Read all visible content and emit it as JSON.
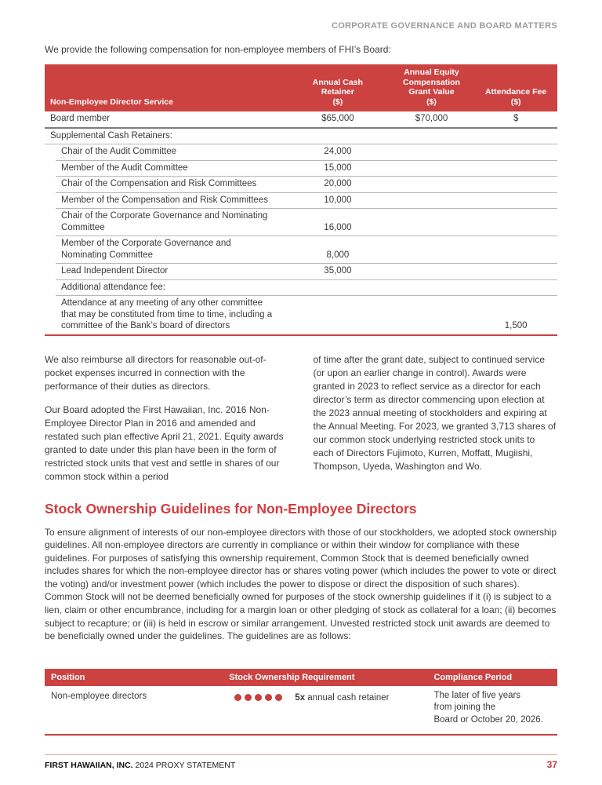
{
  "page_header": "CORPORATE GOVERNANCE AND BOARD MATTERS",
  "intro": "We provide the following compensation for non-employee members of FHI’s Board:",
  "comp_table": {
    "col_headers": {
      "service": "Non-Employee Director Service",
      "cash": "Annual Cash\nRetainer\n($)",
      "equity": "Annual Equity\nCompensation\nGrant Value\n($)",
      "fee": "Attendance Fee\n($)"
    },
    "rows": [
      {
        "label": "Board member",
        "cash": "$65,000",
        "equity": "$70,000",
        "fee": "$"
      },
      {
        "label": "Supplemental Cash Retainers:",
        "cash": "",
        "equity": "",
        "fee": ""
      },
      {
        "label": "Chair of the Audit Committee",
        "cash": "24,000",
        "equity": "",
        "fee": ""
      },
      {
        "label": "Member of the Audit Committee",
        "cash": "15,000",
        "equity": "",
        "fee": ""
      },
      {
        "label": "Chair of the Compensation and Risk Committees",
        "cash": "20,000",
        "equity": "",
        "fee": ""
      },
      {
        "label": "Member of the Compensation and Risk Committees",
        "cash": "10,000",
        "equity": "",
        "fee": ""
      },
      {
        "label": "Chair of the Corporate Governance and Nominating\nCommittee",
        "cash": "16,000",
        "equity": "",
        "fee": ""
      },
      {
        "label": "Member of the Corporate Governance and\nNominating Committee",
        "cash": "8,000",
        "equity": "",
        "fee": ""
      },
      {
        "label": "Lead Independent Director",
        "cash": "35,000",
        "equity": "",
        "fee": ""
      },
      {
        "label": "Additional attendance fee:",
        "cash": "",
        "equity": "",
        "fee": ""
      },
      {
        "label": "Attendance at any meeting of any other committee\nthat may be constituted from time to time, including a\ncommittee of the Bank’s board of directors",
        "cash": "",
        "equity": "",
        "fee": "1,500"
      }
    ]
  },
  "body": {
    "left_para_1": "We also reimburse all directors for reasonable out-of-pocket expenses incurred in connection with the performance of their duties as directors.",
    "left_para_2": "Our Board adopted the First Hawaiian, Inc. 2016 Non-Employee Director Plan in 2016 and amended and restated such plan effective April 21, 2021. Equity awards granted to date under this plan have been in the form of restricted stock units that vest and settle in shares of our common stock within a period",
    "right_para_1": "of time after the grant date, subject to continued service (or upon an earlier change in control). Awards were granted in 2023 to reflect service as a director for each director’s term as director commencing upon election at the 2023 annual meeting of stockholders and expiring at the Annual Meeting. For 2023, we granted 3,713 shares of our common stock underlying restricted stock units to each of Directors Fujimoto, Kurren, Moffatt, Mugiishi, Thompson, Uyeda, Washington and Wo."
  },
  "ownership": {
    "heading": "Stock Ownership Guidelines for Non-Employee Directors",
    "paragraph": "To ensure alignment of interests of our non-employee directors with those of our stockholders, we adopted stock ownership guidelines. All non-employee directors are currently in compliance or within their window for compliance with these guidelines. For purposes of satisfying this ownership requirement, Common Stock that is deemed beneficially owned includes shares for which the non-employee director has or shares voting power (which includes the power to vote or direct the voting) and/or investment power (which includes the power to dispose or direct the disposition of such shares). Common Stock will not be deemed beneficially owned for purposes of the stock ownership guidelines if it (i) is subject to a lien, claim or other encumbrance, including for a margin loan or other pledging of stock as collateral for a loan; (ii) becomes subject to recapture; or (iii) is held in escrow or similar arrangement. Unvested restricted stock unit awards are deemed to be beneficially owned under the guidelines. The guidelines are as follows:",
    "table": {
      "headers": {
        "position": "Position",
        "requirement": "Stock Ownership Requirement",
        "compliance": "Compliance Period"
      },
      "row": {
        "position": "Non-employee directors",
        "dots_count": 5,
        "requirement_multiplier": "5x",
        "requirement_text": " annual cash retainer",
        "compliance": "The later of five years\nfrom joining the\nBoard or October 20, 2026."
      }
    }
  },
  "footer": {
    "brand": "FIRST HAWAIIAN, INC.",
    "doc": " 2024 PROXY STATEMENT",
    "page_number": "37"
  },
  "colors": {
    "table_header_red": "#cb4241",
    "heading_red": "#d23c3e",
    "page_number_red": "#c5393b",
    "dot_red": "#c8403e",
    "running_head_gray": "#9c9c9c"
  }
}
